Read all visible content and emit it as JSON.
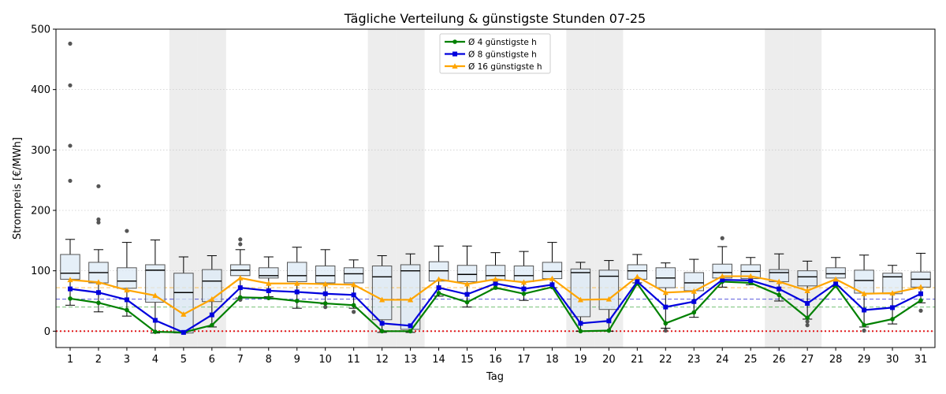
{
  "chart_data": {
    "type": "box-line",
    "title": "Tägliche Verteilung & günstigste Stunden 07-25",
    "xlabel": "Tag",
    "ylabel": "Strompreis [€/MWh]",
    "categories": [
      "1",
      "2",
      "3",
      "4",
      "5",
      "6",
      "7",
      "8",
      "9",
      "10",
      "11",
      "12",
      "13",
      "14",
      "15",
      "16",
      "17",
      "18",
      "19",
      "20",
      "21",
      "22",
      "23",
      "24",
      "25",
      "26",
      "27",
      "28",
      "29",
      "30",
      "31"
    ],
    "ylim": [
      -27,
      500
    ],
    "yticks": [
      0,
      100,
      200,
      300,
      400,
      500
    ],
    "grid": "horizontal dotted",
    "legend_position": "top-center",
    "weekend_days": [
      5,
      6,
      12,
      13,
      19,
      20,
      26,
      27
    ],
    "reference_lines": [
      {
        "value": 0,
        "color": "#e41a1c",
        "style": "dotted"
      },
      {
        "value": 53,
        "color": "#0000cc",
        "style": "dashed"
      },
      {
        "value": 40,
        "color": "#2ca02c",
        "style": "dashed"
      },
      {
        "value": 72,
        "color": "#ffa500",
        "style": "dashed"
      }
    ],
    "boxes": [
      {
        "day": 1,
        "whislo": 43,
        "q1": 86,
        "med": 96,
        "q3": 127,
        "whishi": 152,
        "fliers": [
          249,
          307,
          407,
          476
        ]
      },
      {
        "day": 2,
        "whislo": 32,
        "q1": 80,
        "med": 97,
        "q3": 114,
        "whishi": 135,
        "fliers": [
          180,
          185,
          240
        ]
      },
      {
        "day": 3,
        "whislo": 25,
        "q1": 71,
        "med": 83,
        "q3": 105,
        "whishi": 147,
        "fliers": [
          166
        ]
      },
      {
        "day": 4,
        "whislo": -3,
        "q1": 48,
        "med": 101,
        "q3": 110,
        "whishi": 151,
        "fliers": []
      },
      {
        "day": 5,
        "whislo": -3,
        "q1": -3,
        "med": 64,
        "q3": 96,
        "whishi": 123,
        "fliers": []
      },
      {
        "day": 6,
        "whislo": 7,
        "q1": 49,
        "med": 83,
        "q3": 102,
        "whishi": 125,
        "fliers": []
      },
      {
        "day": 7,
        "whislo": 55,
        "q1": 92,
        "med": 101,
        "q3": 110,
        "whishi": 135,
        "fliers": [
          52,
          144,
          152
        ]
      },
      {
        "day": 8,
        "whislo": 57,
        "q1": 88,
        "med": 92,
        "q3": 105,
        "whishi": 123,
        "fliers": []
      },
      {
        "day": 9,
        "whislo": 38,
        "q1": 82,
        "med": 92,
        "q3": 114,
        "whishi": 139,
        "fliers": []
      },
      {
        "day": 10,
        "whislo": 45,
        "q1": 80,
        "med": 92,
        "q3": 108,
        "whishi": 135,
        "fliers": [
          40
        ]
      },
      {
        "day": 11,
        "whislo": 38,
        "q1": 80,
        "med": 95,
        "q3": 105,
        "whishi": 118,
        "fliers": [
          32
        ]
      },
      {
        "day": 12,
        "whislo": -2,
        "q1": 19,
        "med": 90,
        "q3": 108,
        "whishi": 125,
        "fliers": []
      },
      {
        "day": 13,
        "whislo": -2,
        "q1": 3,
        "med": 100,
        "q3": 110,
        "whishi": 128,
        "fliers": []
      },
      {
        "day": 14,
        "whislo": 58,
        "q1": 83,
        "med": 100,
        "q3": 115,
        "whishi": 141,
        "fliers": []
      },
      {
        "day": 15,
        "whislo": 40,
        "q1": 82,
        "med": 94,
        "q3": 109,
        "whishi": 141,
        "fliers": []
      },
      {
        "day": 16,
        "whislo": 70,
        "q1": 84,
        "med": 92,
        "q3": 109,
        "whishi": 130,
        "fliers": []
      },
      {
        "day": 17,
        "whislo": 51,
        "q1": 82,
        "med": 92,
        "q3": 108,
        "whishi": 132,
        "fliers": []
      },
      {
        "day": 18,
        "whislo": 72,
        "q1": 87,
        "med": 99,
        "q3": 114,
        "whishi": 147,
        "fliers": []
      },
      {
        "day": 19,
        "whislo": 0,
        "q1": 24,
        "med": 97,
        "q3": 103,
        "whishi": 114,
        "fliers": []
      },
      {
        "day": 20,
        "whislo": 0,
        "q1": 36,
        "med": 91,
        "q3": 101,
        "whishi": 117,
        "fliers": []
      },
      {
        "day": 21,
        "whislo": 80,
        "q1": 86,
        "med": 100,
        "q3": 110,
        "whishi": 127,
        "fliers": []
      },
      {
        "day": 22,
        "whislo": 5,
        "q1": 72,
        "med": 88,
        "q3": 105,
        "whishi": 113,
        "fliers": [
          1
        ]
      },
      {
        "day": 23,
        "whislo": 23,
        "q1": 67,
        "med": 80,
        "q3": 97,
        "whishi": 119,
        "fliers": []
      },
      {
        "day": 24,
        "whislo": 73,
        "q1": 88,
        "med": 97,
        "q3": 111,
        "whishi": 140,
        "fliers": [
          154
        ]
      },
      {
        "day": 25,
        "whislo": 77,
        "q1": 87,
        "med": 99,
        "q3": 110,
        "whishi": 122,
        "fliers": []
      },
      {
        "day": 26,
        "whislo": 50,
        "q1": 82,
        "med": 97,
        "q3": 102,
        "whishi": 128,
        "fliers": []
      },
      {
        "day": 27,
        "whislo": 20,
        "q1": 75,
        "med": 90,
        "q3": 100,
        "whishi": 116,
        "fliers": [
          10,
          16
        ]
      },
      {
        "day": 28,
        "whislo": 74,
        "q1": 88,
        "med": 95,
        "q3": 105,
        "whishi": 122,
        "fliers": []
      },
      {
        "day": 29,
        "whislo": 7,
        "q1": 63,
        "med": 84,
        "q3": 101,
        "whishi": 126,
        "fliers": [
          1
        ]
      },
      {
        "day": 30,
        "whislo": 12,
        "q1": 62,
        "med": 90,
        "q3": 96,
        "whishi": 109,
        "fliers": []
      },
      {
        "day": 31,
        "whislo": 47,
        "q1": 73,
        "med": 86,
        "q3": 98,
        "whishi": 129,
        "fliers": [
          34
        ]
      }
    ],
    "series": [
      {
        "name": "Ø 4 günstigste h",
        "color": "#008000",
        "marker": "circle",
        "values": [
          54,
          47,
          35,
          -1,
          -2,
          10,
          56,
          55,
          50,
          46,
          43,
          0,
          0,
          63,
          48,
          72,
          62,
          73,
          0,
          1,
          79,
          13,
          31,
          82,
          80,
          60,
          22,
          75,
          10,
          20,
          51
        ]
      },
      {
        "name": "Ø 8 günstigste h",
        "color": "#0000dd",
        "marker": "square",
        "values": [
          70,
          64,
          52,
          18,
          -2,
          27,
          72,
          67,
          65,
          62,
          60,
          13,
          9,
          72,
          61,
          79,
          70,
          77,
          13,
          17,
          82,
          40,
          49,
          85,
          84,
          70,
          46,
          79,
          35,
          39,
          62
        ]
      },
      {
        "name": "Ø 16 günstigste h",
        "color": "#ffa500",
        "marker": "triangle",
        "values": [
          85,
          81,
          68,
          59,
          28,
          53,
          88,
          79,
          79,
          78,
          77,
          52,
          52,
          86,
          78,
          86,
          81,
          87,
          52,
          53,
          90,
          64,
          66,
          91,
          91,
          82,
          67,
          86,
          62,
          63,
          73
        ]
      }
    ]
  }
}
